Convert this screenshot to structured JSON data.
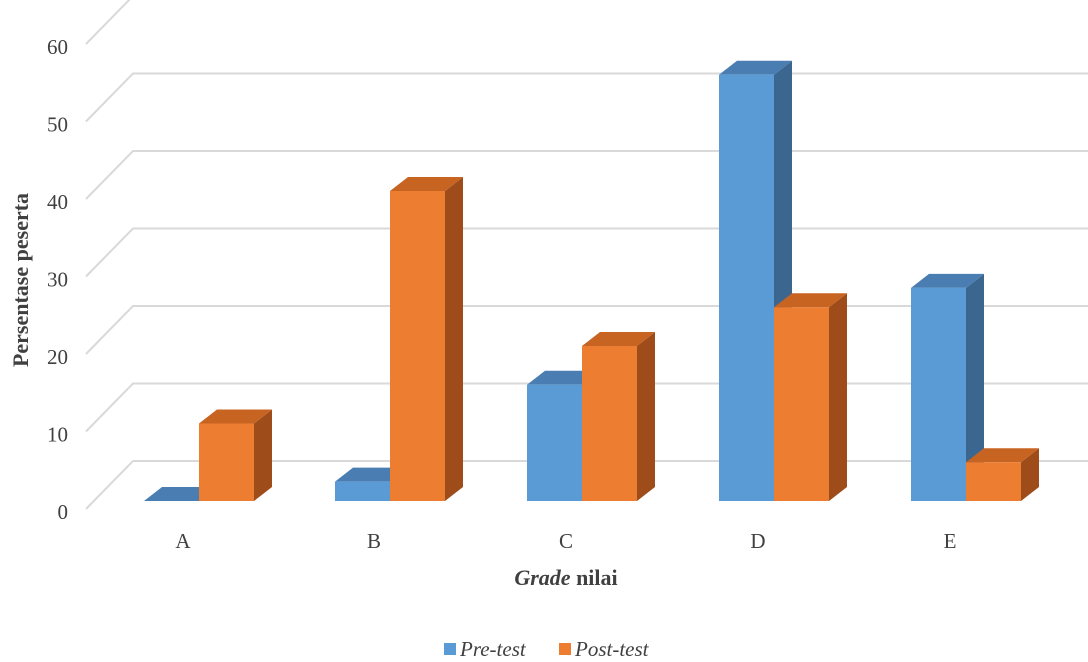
{
  "chart_data": {
    "type": "bar",
    "style": "3d-clustered-column",
    "categories": [
      "A",
      "B",
      "C",
      "D",
      "E"
    ],
    "series": [
      {
        "name": "Pre-test",
        "values": [
          0,
          2.5,
          15,
          55,
          27.5
        ]
      },
      {
        "name": "Post-test",
        "values": [
          10,
          40,
          20,
          25,
          5
        ]
      }
    ],
    "xlabel_italic": "Grade",
    "xlabel_rest": " nilai",
    "ylabel": "Persentase peserta",
    "ylim": [
      0,
      60
    ],
    "yticks": [
      0,
      10,
      20,
      30,
      40,
      50,
      60
    ],
    "grid": true,
    "legend_position": "bottom",
    "colors": {
      "pre_front": "#5B9BD5",
      "pre_top": "#4A7EB3",
      "pre_side": "#3A6690",
      "post_front": "#ED7D31",
      "post_top": "#C86422",
      "post_side": "#9E4C1A",
      "grid": "#D9D9D9",
      "text": "#404040"
    }
  }
}
